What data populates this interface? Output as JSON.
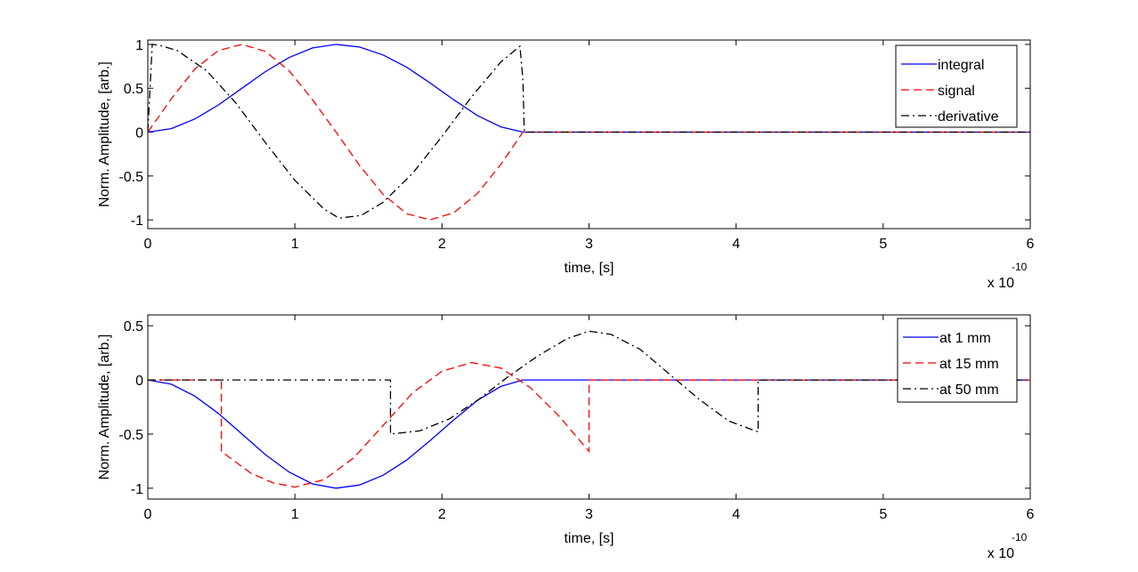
{
  "chart_data": [
    {
      "type": "line",
      "xlabel": "time, [s]",
      "ylabel": "Norm. Amplitude, [arb.]",
      "x_multiplier": {
        "base": "x 10",
        "exponent": "-10"
      },
      "xlim": [
        0,
        6
      ],
      "ylim": [
        -1.1,
        1.05
      ],
      "xticks": [
        "0",
        "1",
        "2",
        "3",
        "4",
        "5",
        "6"
      ],
      "yticks": [
        "1",
        "0.5",
        "0",
        "-0.5",
        "-1"
      ],
      "grid": false,
      "legend_position": "top-right",
      "series": [
        {
          "name": "integral",
          "color": "#0000ff",
          "style": "solid",
          "x": [
            0,
            0.16,
            0.32,
            0.48,
            0.64,
            0.8,
            0.96,
            1.12,
            1.28,
            1.44,
            1.6,
            1.76,
            1.92,
            2.08,
            2.24,
            2.4,
            2.55,
            6
          ],
          "y": [
            0,
            0.04,
            0.15,
            0.31,
            0.5,
            0.69,
            0.85,
            0.96,
            1.0,
            0.97,
            0.88,
            0.74,
            0.56,
            0.37,
            0.19,
            0.06,
            0,
            0
          ]
        },
        {
          "name": "signal",
          "color": "#ff0000",
          "style": "dashed",
          "x": [
            0,
            0.16,
            0.32,
            0.48,
            0.64,
            0.8,
            0.96,
            1.12,
            1.28,
            1.44,
            1.6,
            1.76,
            1.92,
            2.08,
            2.24,
            2.4,
            2.55,
            6
          ],
          "y": [
            0,
            0.38,
            0.72,
            0.93,
            1.0,
            0.92,
            0.7,
            0.37,
            0,
            -0.38,
            -0.71,
            -0.93,
            -1.0,
            -0.92,
            -0.7,
            -0.37,
            0,
            0
          ]
        },
        {
          "name": "derivative",
          "color": "#000000",
          "style": "dashdot",
          "x": [
            0,
            0.03,
            0.08,
            0.2,
            0.4,
            0.6,
            0.8,
            1.0,
            1.2,
            1.3,
            1.45,
            1.6,
            1.8,
            2.0,
            2.2,
            2.4,
            2.53,
            2.55,
            2.56,
            6
          ],
          "y": [
            0,
            1.0,
            0.99,
            0.93,
            0.7,
            0.33,
            -0.12,
            -0.55,
            -0.88,
            -0.98,
            -0.95,
            -0.8,
            -0.47,
            -0.05,
            0.4,
            0.8,
            0.98,
            0.6,
            0,
            0
          ]
        }
      ]
    },
    {
      "type": "line",
      "xlabel": "time, [s]",
      "ylabel": "Norm. Amplitude, [arb.]",
      "x_multiplier": {
        "base": "x 10",
        "exponent": "-10"
      },
      "xlim": [
        0,
        6
      ],
      "ylim": [
        -1.1,
        0.6
      ],
      "xticks": [
        "0",
        "1",
        "2",
        "3",
        "4",
        "5",
        "6"
      ],
      "yticks": [
        "0.5",
        "0",
        "-0.5",
        "-1"
      ],
      "grid": false,
      "legend_position": "top-right",
      "series": [
        {
          "name": "at 1 mm",
          "color": "#0000ff",
          "style": "solid",
          "x": [
            0,
            0.16,
            0.32,
            0.48,
            0.64,
            0.8,
            0.96,
            1.12,
            1.28,
            1.44,
            1.6,
            1.76,
            1.92,
            2.08,
            2.24,
            2.4,
            2.55,
            6
          ],
          "y": [
            0,
            -0.04,
            -0.15,
            -0.31,
            -0.5,
            -0.69,
            -0.85,
            -0.96,
            -1.0,
            -0.97,
            -0.88,
            -0.74,
            -0.56,
            -0.37,
            -0.19,
            -0.06,
            0,
            0
          ]
        },
        {
          "name": "at 15 mm",
          "color": "#ff0000",
          "style": "dashed",
          "x": [
            0,
            0.5,
            0.5,
            0.7,
            0.85,
            1.0,
            1.2,
            1.4,
            1.6,
            1.8,
            2.0,
            2.2,
            2.4,
            2.6,
            2.8,
            3.0,
            3.0,
            6
          ],
          "y": [
            0,
            0,
            -0.66,
            -0.86,
            -0.95,
            -0.99,
            -0.92,
            -0.72,
            -0.42,
            -0.12,
            0.08,
            0.16,
            0.11,
            -0.07,
            -0.34,
            -0.66,
            0,
            0
          ]
        },
        {
          "name": "at 50 mm",
          "color": "#000000",
          "style": "dashdot",
          "x": [
            0,
            1.65,
            1.65,
            1.85,
            2.05,
            2.25,
            2.45,
            2.65,
            2.85,
            3.0,
            3.15,
            3.35,
            3.55,
            3.75,
            3.95,
            4.15,
            4.15,
            6
          ],
          "y": [
            0,
            0,
            -0.5,
            -0.47,
            -0.36,
            -0.18,
            0.03,
            0.22,
            0.38,
            0.45,
            0.42,
            0.28,
            0.05,
            -0.18,
            -0.38,
            -0.48,
            0,
            0
          ]
        }
      ]
    }
  ]
}
